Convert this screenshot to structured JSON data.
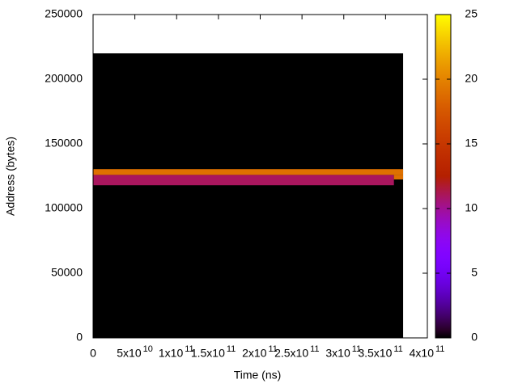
{
  "chart_data": {
    "type": "heatmap",
    "xlabel": "Time (ns)",
    "ylabel": "Address (bytes)",
    "xlim": [
      0,
      400000000000
    ],
    "ylim": [
      0,
      250000
    ],
    "zlim": [
      0,
      25
    ],
    "xticks": [
      {
        "value": 0,
        "label": "0"
      },
      {
        "value": 50000000000,
        "label": "5x10",
        "power": "10"
      },
      {
        "value": 100000000000,
        "label": "1x10",
        "power": "11"
      },
      {
        "value": 150000000000,
        "label": "1.5x10",
        "power": "11"
      },
      {
        "value": 200000000000,
        "label": "2x10",
        "power": "11"
      },
      {
        "value": 250000000000,
        "label": "2.5x10",
        "power": "11"
      },
      {
        "value": 300000000000,
        "label": "3x10",
        "power": "11"
      },
      {
        "value": 350000000000,
        "label": "3.5x10",
        "power": "11"
      },
      {
        "value": 400000000000,
        "label": "4x10",
        "power": "11"
      }
    ],
    "yticks": [
      0,
      50000,
      100000,
      150000,
      200000,
      250000
    ],
    "zticks": [
      0,
      5,
      10,
      15,
      20,
      25
    ],
    "palette": "rgbformulae-7-5-15",
    "cells": [
      {
        "x0": 0,
        "x1": 371000000000,
        "y0": 0,
        "y1": 220000,
        "value": 0
      },
      {
        "x0": 0,
        "x1": 371000000000,
        "y0": 126000,
        "y1": 130500,
        "value": 19
      },
      {
        "x0": 0,
        "x1": 360000000000,
        "y0": 118000,
        "y1": 126000,
        "value": 11
      },
      {
        "x0": 360000000000,
        "x1": 371000000000,
        "y0": 122500,
        "y1": 126000,
        "value": 19
      }
    ]
  }
}
